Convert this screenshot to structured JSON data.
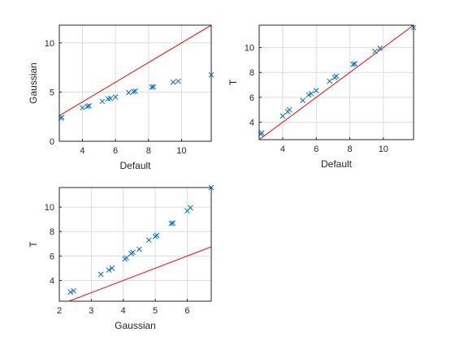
{
  "figure": {
    "background": "#ffffff"
  },
  "style": {
    "marker_color": "#0072BD",
    "line_color": "#FF0000",
    "grid_color": "#DCDCDC",
    "axis_color": "#262626"
  },
  "chart_data": [
    {
      "type": "scatter",
      "xlabel": "Default",
      "ylabel": "Gaussian",
      "xlim": [
        2.6,
        11.8
      ],
      "ylim": [
        0,
        11.8
      ],
      "xticks": [
        4,
        6,
        8,
        10
      ],
      "yticks": [
        0,
        5,
        10
      ],
      "grid": true,
      "reference_line": [
        [
          2.6,
          2.6
        ],
        [
          11.8,
          11.8
        ]
      ],
      "series": [
        {
          "marker": "x",
          "x": [
            2.7,
            2.75,
            4.0,
            4.3,
            4.4,
            5.2,
            5.55,
            5.7,
            6.0,
            6.8,
            7.1,
            7.2,
            8.2,
            8.3,
            9.5,
            9.8,
            11.8
          ],
          "y": [
            2.35,
            2.45,
            3.4,
            3.55,
            3.6,
            4.05,
            4.3,
            4.35,
            4.5,
            4.95,
            5.05,
            5.1,
            5.5,
            5.55,
            6.0,
            6.1,
            6.75
          ]
        }
      ]
    },
    {
      "type": "scatter",
      "xlabel": "Default",
      "ylabel": "T",
      "xlim": [
        2.6,
        11.8
      ],
      "ylim": [
        2.6,
        11.8
      ],
      "xticks": [
        4,
        6,
        8,
        10
      ],
      "yticks": [
        4,
        6,
        8,
        10
      ],
      "grid": true,
      "reference_line": [
        [
          2.6,
          2.6
        ],
        [
          11.8,
          11.8
        ]
      ],
      "series": [
        {
          "marker": "x",
          "x": [
            2.7,
            2.75,
            4.0,
            4.3,
            4.4,
            5.2,
            5.55,
            5.7,
            6.0,
            6.8,
            7.1,
            7.2,
            8.2,
            8.3,
            9.5,
            9.8,
            11.8
          ],
          "y": [
            3.05,
            3.15,
            4.5,
            4.85,
            5.0,
            5.75,
            6.2,
            6.3,
            6.55,
            7.3,
            7.6,
            7.7,
            8.65,
            8.7,
            9.7,
            9.95,
            11.6
          ]
        }
      ]
    },
    {
      "type": "scatter",
      "xlabel": "Gaussian",
      "ylabel": "T",
      "xlim": [
        2.0,
        6.75
      ],
      "ylim": [
        2.3,
        11.6
      ],
      "xticks": [
        2,
        3,
        4,
        5,
        6
      ],
      "yticks": [
        4,
        6,
        8,
        10
      ],
      "grid": true,
      "reference_line": [
        [
          2.3,
          2.3
        ],
        [
          6.75,
          6.75
        ]
      ],
      "series": [
        {
          "marker": "x",
          "x": [
            2.35,
            2.45,
            3.3,
            3.55,
            3.65,
            4.05,
            4.1,
            4.25,
            4.3,
            4.5,
            4.8,
            5.0,
            5.05,
            5.5,
            5.55,
            6.0,
            6.1,
            6.75
          ],
          "y": [
            3.05,
            3.15,
            4.5,
            4.85,
            5.0,
            5.75,
            5.85,
            6.2,
            6.3,
            6.55,
            7.3,
            7.6,
            7.7,
            8.65,
            8.7,
            9.7,
            9.95,
            11.6
          ]
        }
      ]
    }
  ]
}
